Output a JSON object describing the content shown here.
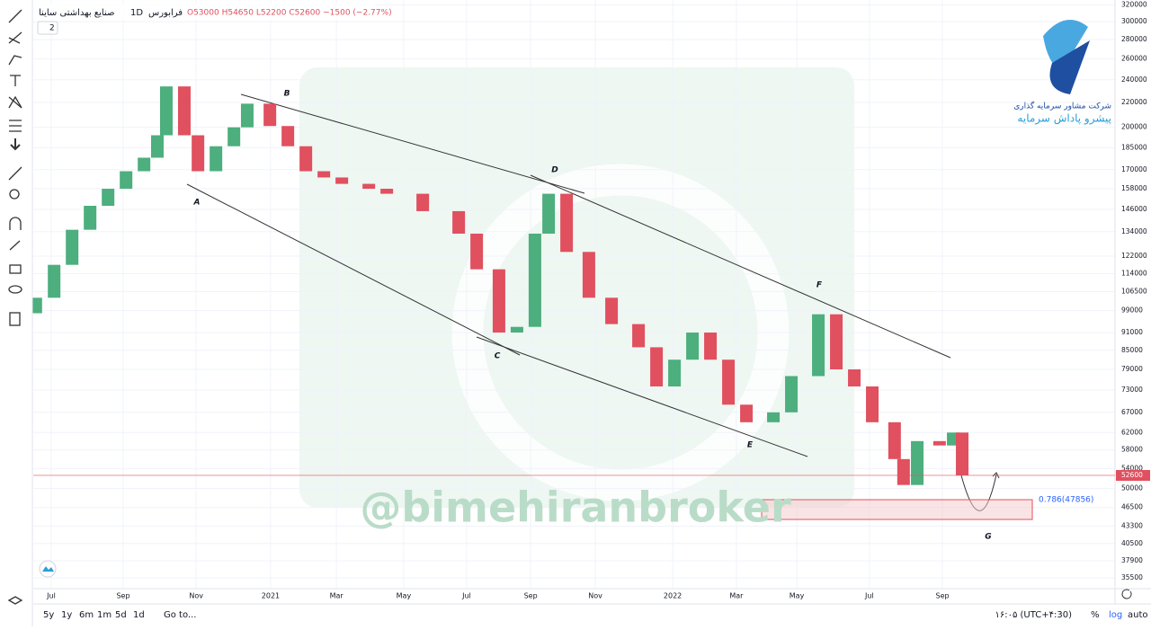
{
  "chart_data": {
    "type": "candlestick",
    "header": {
      "symbol": "صنایع بهداشتی ساینا",
      "interval": "1D",
      "exchange": "فرابورس",
      "ohlc": "O53000 H54650 L52200 C52600 −1500 (−2.77%)",
      "indicators": "2"
    },
    "x": [
      -0.43,
      0.08,
      0.58,
      1.08,
      1.58,
      2.08,
      2.58,
      2.95,
      3.2,
      3.7,
      4.08,
      4.58,
      5.08,
      5.45,
      6.08,
      6.58,
      7.08,
      7.58,
      8.08,
      8.83,
      9.33,
      10.33,
      11.33,
      11.83,
      12.45,
      12.95,
      13.45,
      13.83,
      14.33,
      14.95,
      15.58,
      16.33,
      16.83,
      17.33,
      17.83,
      18.33,
      18.83,
      19.33,
      20.08,
      20.58,
      21.33,
      21.83,
      22.33,
      22.83,
      23.45,
      23.7,
      24.08,
      24.7,
      25.08,
      25.33
    ],
    "open": [
      98000,
      104000,
      118000,
      135000,
      148000,
      158000,
      169000,
      178000,
      194000,
      234000,
      194000,
      169000,
      186000,
      200000,
      219000,
      201000,
      186000,
      169000,
      165000,
      161000,
      158000,
      155000,
      145000,
      133000,
      116000,
      91000,
      93000,
      133000,
      155000,
      124000,
      104000,
      94000,
      86000,
      74000,
      82000,
      91000,
      82000,
      69000,
      64500,
      67000,
      77000,
      97600,
      79000,
      74000,
      64500,
      56000,
      50700,
      60000,
      59000,
      62000
    ],
    "close": [
      104000,
      118000,
      135000,
      148000,
      158000,
      169000,
      178000,
      194000,
      234000,
      194000,
      169000,
      186000,
      200000,
      219000,
      201000,
      186000,
      169000,
      165000,
      161000,
      158000,
      155000,
      145000,
      133000,
      116000,
      91000,
      93000,
      133000,
      155000,
      124000,
      104000,
      94000,
      86000,
      74000,
      82000,
      91000,
      82000,
      69000,
      64500,
      67000,
      77000,
      97600,
      79000,
      74000,
      64500,
      56000,
      50700,
      60000,
      59000,
      62000,
      52600
    ],
    "up_color": "#4caf7d",
    "down_color": "#e0505f",
    "xlim": [
      -0.5,
      29.58
    ],
    "xticks": [
      {
        "value": 0,
        "label": "Jul"
      },
      {
        "value": 2,
        "label": "Sep"
      },
      {
        "value": 4.03,
        "label": "Nov"
      },
      {
        "value": 6.1,
        "label": "2021"
      },
      {
        "value": 7.93,
        "label": "Mar"
      },
      {
        "value": 9.8,
        "label": "May"
      },
      {
        "value": 11.55,
        "label": "Jul"
      },
      {
        "value": 13.33,
        "label": "Sep"
      },
      {
        "value": 15.13,
        "label": "Nov"
      },
      {
        "value": 17.28,
        "label": "2022"
      },
      {
        "value": 19.05,
        "label": "Mar"
      },
      {
        "value": 20.73,
        "label": "May"
      },
      {
        "value": 22.75,
        "label": "Jul"
      },
      {
        "value": 24.78,
        "label": "Sep"
      }
    ],
    "ylim": [
      34060,
      326000
    ],
    "log_scale": true,
    "grid": true,
    "yticks": [
      35500,
      37900,
      40500,
      43300,
      46500,
      50000,
      54000,
      58000,
      62000,
      67000,
      73000,
      79000,
      85000,
      91000,
      99000,
      106500,
      114000,
      122000,
      134000,
      146000,
      158000,
      170000,
      185000,
      200000,
      220000,
      240000,
      260000,
      280000,
      300000,
      320000
    ],
    "annotations": {
      "a": "A",
      "b": "B",
      "c": "C",
      "d": "D",
      "e": "E",
      "f": "F",
      "g": "G",
      "fib": "0.786(47856)"
    },
    "watermark": "@bimehiranbroker",
    "logo": {
      "line1": "شرکت مشاور سرمایه گذاری",
      "line2": "پیشرو پاداش سرمایه"
    }
  },
  "toolbar": {
    "ranges": [
      "5y",
      "1y",
      "6m",
      "1m",
      "5d",
      "1d"
    ],
    "goto": "Go to...",
    "time": "۱۶:۰۵ (UTC+۴:30)",
    "percent": "%",
    "log": "log",
    "auto": "auto"
  }
}
